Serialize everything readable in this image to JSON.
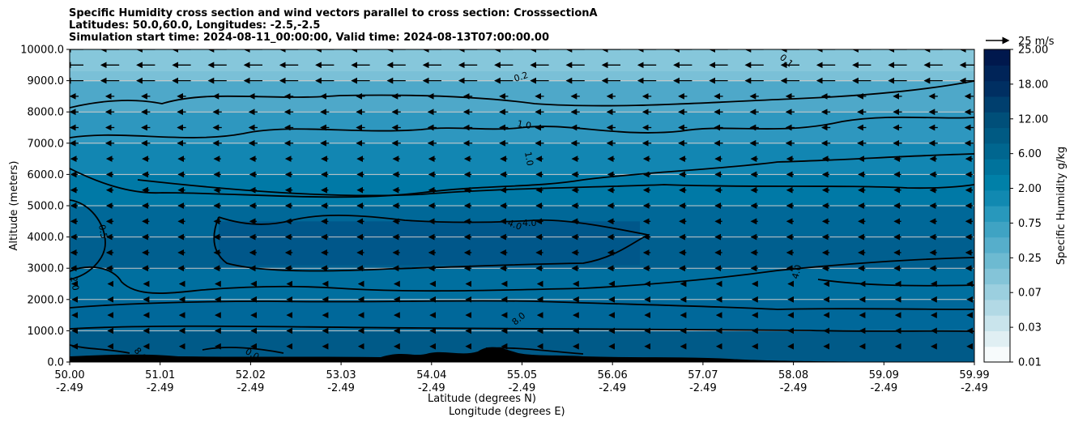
{
  "chart_data": {
    "type": "heatmap",
    "title_lines": [
      "Specific Humidity cross section and wind vectors parallel to cross section: CrosssectionA",
      "Latitudes: 50.0,60.0, Longitudes: -2.5,-2.5",
      "Simulation start time: 2024-08-11_00:00:00, Valid time: 2024-08-13T07:00:00.00"
    ],
    "xlabel_lines": [
      "Latitude (degrees N)",
      "Longitude (degrees E)"
    ],
    "ylabel": "Altitude (meters)",
    "ylim": [
      0,
      10000
    ],
    "yticks": [
      "0.0",
      "1000.0",
      "2000.0",
      "3000.0",
      "4000.0",
      "5000.0",
      "6000.0",
      "7000.0",
      "8000.0",
      "9000.0",
      "10000.0"
    ],
    "xticks": [
      {
        "lat": "50.00",
        "lon": "-2.49"
      },
      {
        "lat": "51.01",
        "lon": "-2.49"
      },
      {
        "lat": "52.02",
        "lon": "-2.49"
      },
      {
        "lat": "53.03",
        "lon": "-2.49"
      },
      {
        "lat": "54.04",
        "lon": "-2.49"
      },
      {
        "lat": "55.05",
        "lon": "-2.49"
      },
      {
        "lat": "56.06",
        "lon": "-2.49"
      },
      {
        "lat": "57.07",
        "lon": "-2.49"
      },
      {
        "lat": "58.08",
        "lon": "-2.49"
      },
      {
        "lat": "59.09",
        "lon": "-2.49"
      },
      {
        "lat": "59.99",
        "lon": "-2.49"
      }
    ],
    "colorbar": {
      "label": "Specific Humidity g/kg",
      "ticks": [
        "0.01",
        "0.03",
        "0.07",
        "0.25",
        "0.75",
        "2.00",
        "6.00",
        "12.00",
        "18.00",
        "25.00"
      ],
      "colors": [
        "#f7fbfc",
        "#e0eff3",
        "#c9e4ec",
        "#b2d9e5",
        "#9bcfdf",
        "#84c4d8",
        "#6dbad1",
        "#56aecb",
        "#3fa3c3",
        "#2898bc",
        "#1189b1",
        "#0080a8",
        "#00739c",
        "#00668f",
        "#005a83",
        "#004f79",
        "#003f6e",
        "#002f62",
        "#002458",
        "#00184d"
      ]
    },
    "wind_key": "25 m/s",
    "contour_labels": [
      "0.1",
      "0.2",
      "1.0",
      "1.0",
      "4.0",
      "4.0",
      "0.5",
      "2.0",
      "4.0",
      "8.0",
      "8.0",
      "0.0"
    ],
    "grid": "horizontal"
  }
}
